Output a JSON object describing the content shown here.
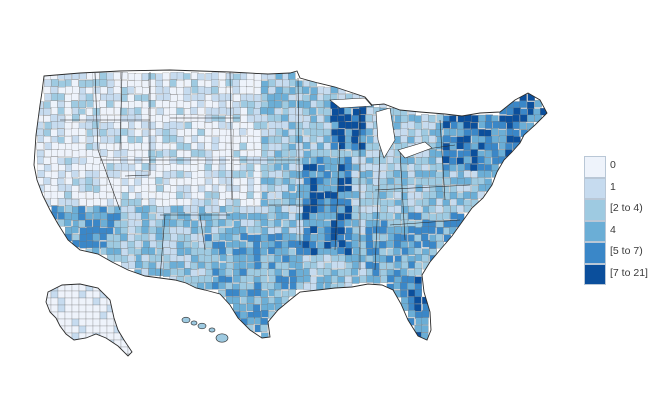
{
  "legend": {
    "items": [
      {
        "label": "0",
        "color": "#eef3fb"
      },
      {
        "label": "1",
        "color": "#c6dbef"
      },
      {
        "label": "[2 to 4)",
        "color": "#9ecae1"
      },
      {
        "label": "4",
        "color": "#6baed6"
      },
      {
        "label": "[5 to 7)",
        "color": "#3a87c8"
      },
      {
        "label": "[7 to 21]",
        "color": "#0b4f9c"
      }
    ]
  },
  "style": {
    "county_border": "#6f6f6f",
    "state_border": "#2b2b2b"
  }
}
